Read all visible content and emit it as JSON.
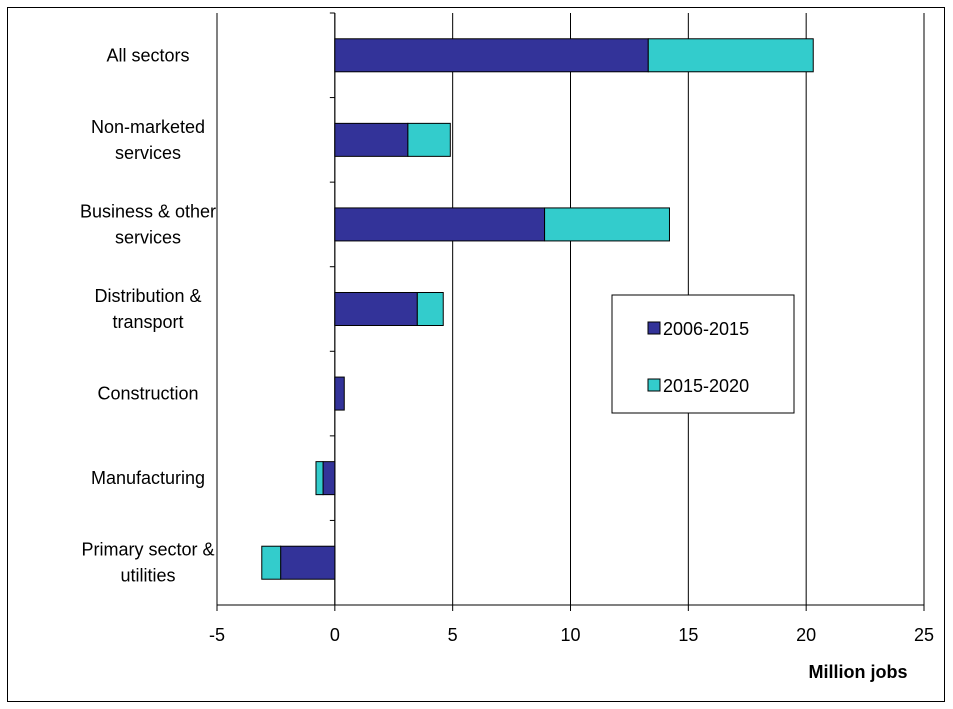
{
  "chart_data": {
    "type": "bar",
    "orientation": "horizontal",
    "stacked": true,
    "categories": [
      [
        "All sectors"
      ],
      [
        "Non-marketed",
        "services"
      ],
      [
        "Business & other",
        "services"
      ],
      [
        "Distribution &",
        "transport"
      ],
      [
        "Construction"
      ],
      [
        "Manufacturing"
      ],
      [
        "Primary sector &",
        "utilities"
      ]
    ],
    "series": [
      {
        "name": "2006-2015",
        "color": "#333399",
        "values": [
          13.3,
          3.1,
          8.9,
          3.5,
          0.4,
          -0.5,
          -2.3
        ]
      },
      {
        "name": "2015-2020",
        "color": "#33cccc",
        "values": [
          7.0,
          1.8,
          5.3,
          1.1,
          0.0,
          -0.3,
          -0.8
        ]
      }
    ],
    "xlabel": "Million jobs",
    "xlim": [
      -5,
      25
    ],
    "xticks": [
      "-5",
      "0",
      "5",
      "10",
      "15",
      "20",
      "25"
    ],
    "grid": "vertical",
    "legend_position": "right"
  }
}
